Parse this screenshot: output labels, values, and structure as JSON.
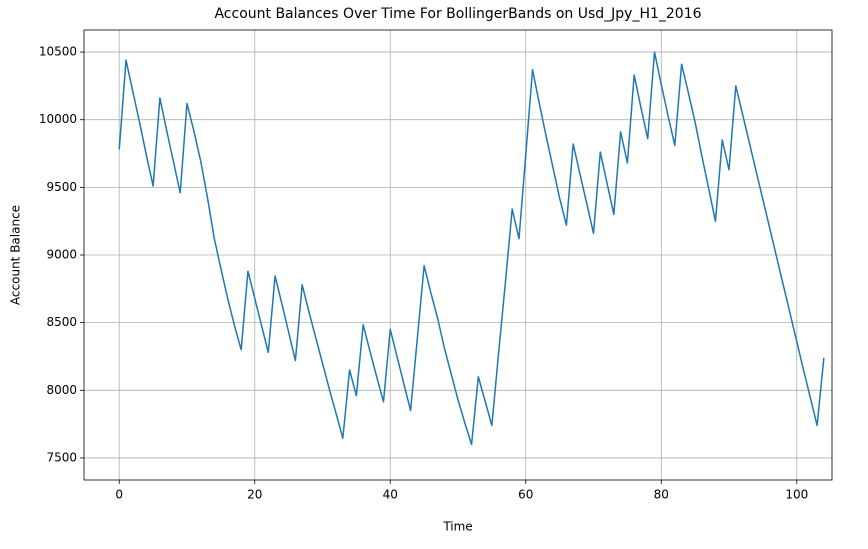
{
  "chart_data": {
    "type": "line",
    "title": "Account Balances Over Time For BollingerBands on Usd_Jpy_H1_2016",
    "x_label": "Time",
    "y_label": "Account Balance",
    "x": [
      0,
      1,
      2,
      3,
      4,
      5,
      6,
      7,
      8,
      9,
      10,
      11,
      12,
      13,
      14,
      15,
      16,
      17,
      18,
      19,
      20,
      21,
      22,
      23,
      24,
      25,
      26,
      27,
      28,
      29,
      30,
      31,
      32,
      33,
      34,
      35,
      36,
      37,
      38,
      39,
      40,
      41,
      42,
      43,
      44,
      45,
      46,
      47,
      48,
      49,
      50,
      51,
      52,
      53,
      54,
      55,
      56,
      57,
      58,
      59,
      60,
      61,
      62,
      63,
      64,
      65,
      66,
      67,
      68,
      69,
      70,
      71,
      72,
      73,
      74,
      75,
      76,
      77,
      78,
      79,
      80,
      81,
      82,
      83,
      84,
      85,
      86,
      87,
      88,
      89,
      90,
      91,
      92,
      93,
      94,
      95,
      96,
      97,
      98,
      99,
      100,
      101,
      102,
      103,
      104
    ],
    "series": [
      {
        "name": "Account Balance",
        "color": "#1f77b4",
        "values": [
          9780,
          10440,
          10210,
          9980,
          9740,
          9510,
          10160,
          9920,
          9690,
          9460,
          10120,
          9920,
          9700,
          9430,
          9130,
          8900,
          8680,
          8480,
          8300,
          8880,
          8680,
          8480,
          8280,
          8845,
          8640,
          8430,
          8220,
          8780,
          8580,
          8390,
          8200,
          8010,
          7830,
          7645,
          8150,
          7960,
          8485,
          8290,
          8100,
          7915,
          8450,
          8250,
          8050,
          7850,
          8385,
          8920,
          8720,
          8530,
          8310,
          8120,
          7930,
          7760,
          7600,
          8100,
          7920,
          7740,
          8280,
          8800,
          9340,
          9120,
          9740,
          10370,
          10120,
          9880,
          9650,
          9420,
          9220,
          9820,
          9600,
          9380,
          9160,
          9760,
          9530,
          9300,
          9910,
          9680,
          10330,
          10090,
          9860,
          10500,
          10260,
          10030,
          9810,
          10410,
          10200,
          9980,
          9730,
          9490,
          9250,
          9850,
          9630,
          10250,
          10040,
          9830,
          9620,
          9410,
          9200,
          8990,
          8780,
          8570,
          8360,
          8150,
          7945,
          7740,
          8240
        ]
      }
    ],
    "xlim": [
      -5.2,
      105.2
    ],
    "ylim": [
      7337,
      10663
    ],
    "xticks": [
      0,
      20,
      40,
      60,
      80,
      100
    ],
    "yticks": [
      7500,
      8000,
      8500,
      9000,
      9500,
      10000,
      10500
    ],
    "grid": true
  }
}
